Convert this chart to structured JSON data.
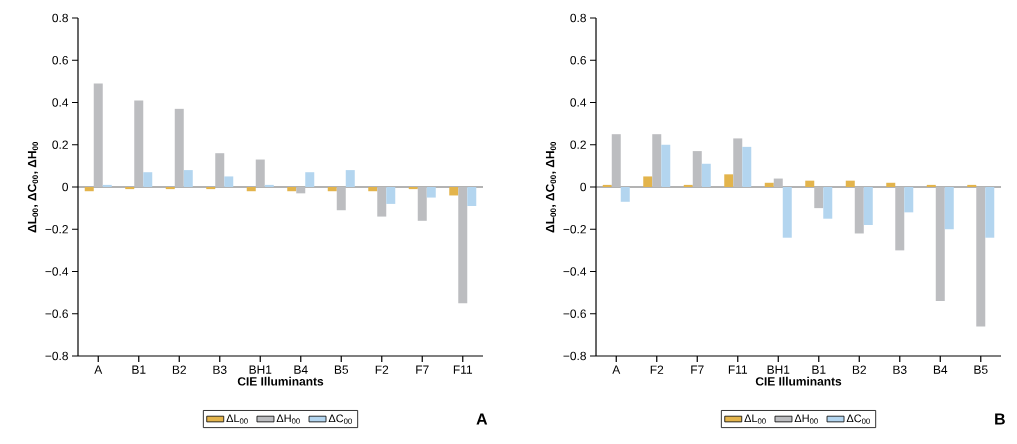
{
  "chart_data": [
    {
      "type": "bar",
      "categories": [
        "A",
        "B1",
        "B2",
        "B3",
        "BH1",
        "B4",
        "B5",
        "F2",
        "F7",
        "F11"
      ],
      "series": [
        {
          "name": "ΔL$_{00}$",
          "color": "#e3b44c",
          "values": [
            -0.02,
            -0.01,
            -0.01,
            -0.01,
            -0.02,
            -0.02,
            -0.02,
            -0.02,
            -0.01,
            -0.04
          ]
        },
        {
          "name": "ΔH$_{00}$",
          "color": "#bcbdc0",
          "values": [
            0.49,
            0.41,
            0.37,
            0.16,
            0.13,
            -0.03,
            -0.11,
            -0.14,
            -0.16,
            -0.55
          ]
        },
        {
          "name": "ΔC$_{00}$",
          "color": "#b3d5ef",
          "values": [
            0.01,
            0.07,
            0.08,
            0.05,
            0.01,
            0.07,
            0.08,
            -0.08,
            -0.05,
            -0.09
          ]
        }
      ],
      "ylim": [
        -0.8,
        0.8
      ],
      "yticks": [
        {
          "value": -0.8,
          "label": "−0.8"
        },
        {
          "value": -0.6,
          "label": "−0.6"
        },
        {
          "value": -0.4,
          "label": "−0.4"
        },
        {
          "value": -0.2,
          "label": "−0.2"
        },
        0,
        0.2,
        0.4,
        0.6,
        0.8
      ],
      "xlabel": "CIE Illuminants",
      "ylabel": "ΔL$_{00}$, ΔC$_{00}$, ΔH$_{00}$",
      "legend": "bottom",
      "ref_lines": [
        {
          "axis": "y",
          "value": 0
        }
      ],
      "annotations": [
        "A"
      ]
    },
    {
      "type": "bar",
      "categories": [
        "A",
        "F2",
        "F7",
        "F11",
        "BH1",
        "B1",
        "B2",
        "B3",
        "B4",
        "B5"
      ],
      "series": [
        {
          "name": "ΔL$_{00}$",
          "color": "#e3b44c",
          "values": [
            0.01,
            0.05,
            0.01,
            0.06,
            0.02,
            0.03,
            0.03,
            0.02,
            0.01,
            0.01
          ]
        },
        {
          "name": "ΔH$_{00}$",
          "color": "#bcbdc0",
          "values": [
            0.25,
            0.25,
            0.17,
            0.23,
            0.04,
            -0.1,
            -0.22,
            -0.3,
            -0.54,
            -0.66
          ]
        },
        {
          "name": "ΔC$_{00}$",
          "color": "#b3d5ef",
          "values": [
            -0.07,
            0.2,
            0.11,
            0.19,
            -0.24,
            -0.15,
            -0.18,
            -0.12,
            -0.2,
            -0.24
          ]
        }
      ],
      "ylim": [
        -0.8,
        0.8
      ],
      "yticks": [
        {
          "value": -0.8,
          "label": "−0.8"
        },
        {
          "value": -0.6,
          "label": "−0.6"
        },
        {
          "value": -0.4,
          "label": "−0.4"
        },
        {
          "value": -0.2,
          "label": "−0.2"
        },
        0,
        0.2,
        0.4,
        0.6,
        0.8
      ],
      "xlabel": "CIE Illuminants",
      "ylabel": "ΔL$_{00}$, ΔC$_{00}$, ΔH$_{00}$",
      "legend": "bottom",
      "ref_lines": [
        {
          "axis": "y",
          "value": 0
        }
      ],
      "annotations": [
        "B"
      ]
    }
  ]
}
